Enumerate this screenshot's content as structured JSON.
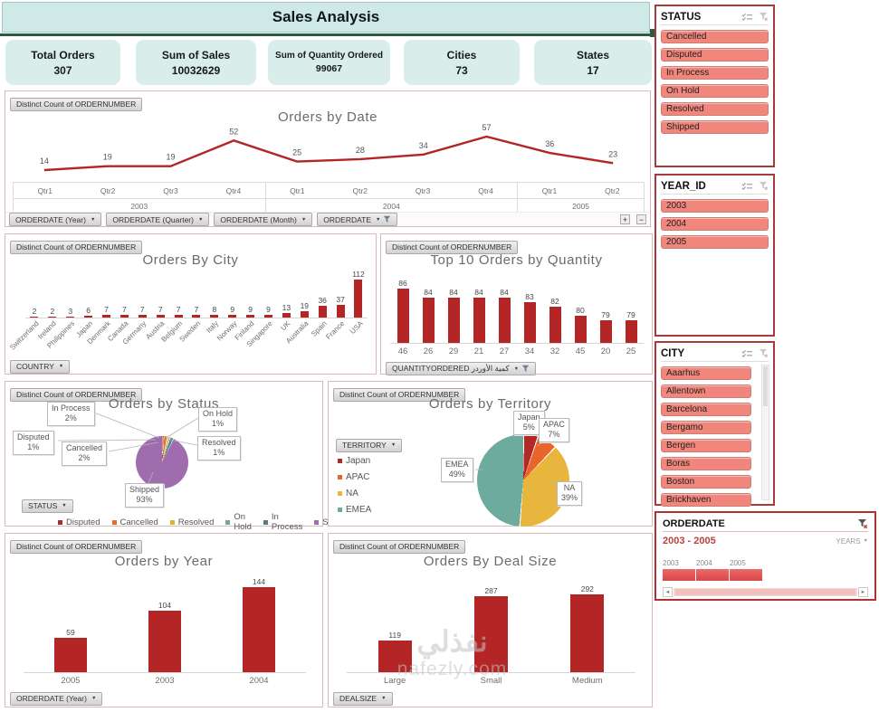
{
  "header": {
    "title": "Sales Analysis"
  },
  "kpis": [
    {
      "label": "Total Orders",
      "value": "307"
    },
    {
      "label": "Sum of Sales",
      "value": "10032629"
    },
    {
      "label": "Sum of Quantity Ordered",
      "value": "99067"
    },
    {
      "label": "Cities",
      "value": "73"
    },
    {
      "label": "States",
      "value": "17"
    }
  ],
  "field_button": "Distinct Count of ORDERNUMBER",
  "charts": {
    "date": {
      "type": "line",
      "title": "Orders by Date",
      "values": [
        14,
        19,
        19,
        52,
        25,
        28,
        34,
        57,
        36,
        23
      ],
      "quarters": [
        "Qtr1",
        "Qtr2",
        "Qtr3",
        "Qtr4",
        "Qtr1",
        "Qtr2",
        "Qtr3",
        "Qtr4",
        "Qtr1",
        "Qtr2"
      ],
      "year_groups": [
        {
          "label": "2003",
          "span": 4
        },
        {
          "label": "2004",
          "span": 4
        },
        {
          "label": "2005",
          "span": 2
        }
      ],
      "line_color": "#b42525",
      "buttons": [
        "ORDERDATE (Year)",
        "ORDERDATE (Quarter)",
        "ORDERDATE (Month)",
        "ORDERDATE"
      ],
      "expand": "+",
      "collapse": "−"
    },
    "city": {
      "type": "bar",
      "title": "Orders By City",
      "categories": [
        "Switzerland",
        "Ireland",
        "Philippines",
        "Japan",
        "Denmark",
        "Canada",
        "Germany",
        "Austria",
        "Belgium",
        "Sweden",
        "Italy",
        "Norway",
        "Finland",
        "Singapore",
        "UK",
        "Australia",
        "Spain",
        "France",
        "USA"
      ],
      "values": [
        2,
        2,
        3,
        6,
        7,
        7,
        7,
        7,
        7,
        7,
        8,
        9,
        9,
        9,
        13,
        19,
        36,
        37,
        112
      ],
      "axis_button": "COUNTRY"
    },
    "quantity": {
      "type": "bar",
      "title": "Top 10 Orders by Quantity",
      "categories": [
        "46",
        "26",
        "29",
        "21",
        "27",
        "34",
        "32",
        "45",
        "20",
        "25"
      ],
      "values": [
        86,
        84,
        84,
        84,
        84,
        83,
        82,
        80,
        79,
        79
      ],
      "axis_button": "QUANTITYORDERED كمية الأوردر"
    },
    "status": {
      "type": "pie",
      "title": "Orders by Status",
      "axis_button": "STATUS",
      "slices": [
        {
          "name": "Disputed",
          "pct": 1,
          "color": "#9c3332"
        },
        {
          "name": "Cancelled",
          "pct": 2,
          "color": "#e2702b"
        },
        {
          "name": "Resolved",
          "pct": 1,
          "color": "#e0b32f"
        },
        {
          "name": "On Hold",
          "pct": 1,
          "color": "#74a89b"
        },
        {
          "name": "In Process",
          "pct": 2,
          "color": "#557d80"
        },
        {
          "name": "Shipped",
          "pct": 93,
          "color": "#9f6dad"
        }
      ],
      "callouts": [
        {
          "label": "In Process",
          "pct": "2%"
        },
        {
          "label": "On Hold",
          "pct": "1%"
        },
        {
          "label": "Disputed",
          "pct": "1%"
        },
        {
          "label": "Resolved",
          "pct": "1%"
        },
        {
          "label": "Cancelled",
          "pct": "2%"
        },
        {
          "label": "Shipped",
          "pct": "93%"
        }
      ]
    },
    "territory": {
      "type": "pie",
      "title": "Orders by Territory",
      "axis_button": "TERRITORY",
      "slices": [
        {
          "name": "Japan",
          "pct": 5,
          "color": "#b22a24"
        },
        {
          "name": "APAC",
          "pct": 7,
          "color": "#e9642a"
        },
        {
          "name": "NA",
          "pct": 39,
          "color": "#e9b63d"
        },
        {
          "name": "EMEA",
          "pct": 49,
          "color": "#6cab9e"
        }
      ],
      "callouts": [
        {
          "label": "Japan",
          "pct": "5%"
        },
        {
          "label": "APAC",
          "pct": "7%"
        },
        {
          "label": "NA",
          "pct": "39%"
        },
        {
          "label": "EMEA",
          "pct": "49%"
        }
      ]
    },
    "year": {
      "type": "bar",
      "title": "Orders by Year",
      "categories": [
        "2005",
        "2003",
        "2004"
      ],
      "values": [
        59,
        104,
        144
      ],
      "axis_button": "ORDERDATE (Year)"
    },
    "dealsize": {
      "type": "bar",
      "title": "Orders By Deal Size",
      "categories": [
        "Large",
        "Small",
        "Medium"
      ],
      "values": [
        119,
        287,
        292
      ],
      "axis_button": "DEALSIZE"
    }
  },
  "slicers": {
    "status": {
      "title": "STATUS",
      "items": [
        "Cancelled",
        "Disputed",
        "In Process",
        "On Hold",
        "Resolved",
        "Shipped"
      ]
    },
    "year": {
      "title": "YEAR_ID",
      "items": [
        "2003",
        "2004",
        "2005"
      ]
    },
    "city": {
      "title": "CITY",
      "items": [
        "Aaarhus",
        "Allentown",
        "Barcelona",
        "Bergamo",
        "Bergen",
        "Boras",
        "Boston",
        "Brickhaven"
      ]
    }
  },
  "timeline": {
    "title": "ORDERDATE",
    "range": "2003 - 2005",
    "unit": "YEARS",
    "years": [
      "2003",
      "2004",
      "2005"
    ]
  },
  "watermark": {
    "line1": "نفذلي",
    "line2": "nafezly.com"
  }
}
